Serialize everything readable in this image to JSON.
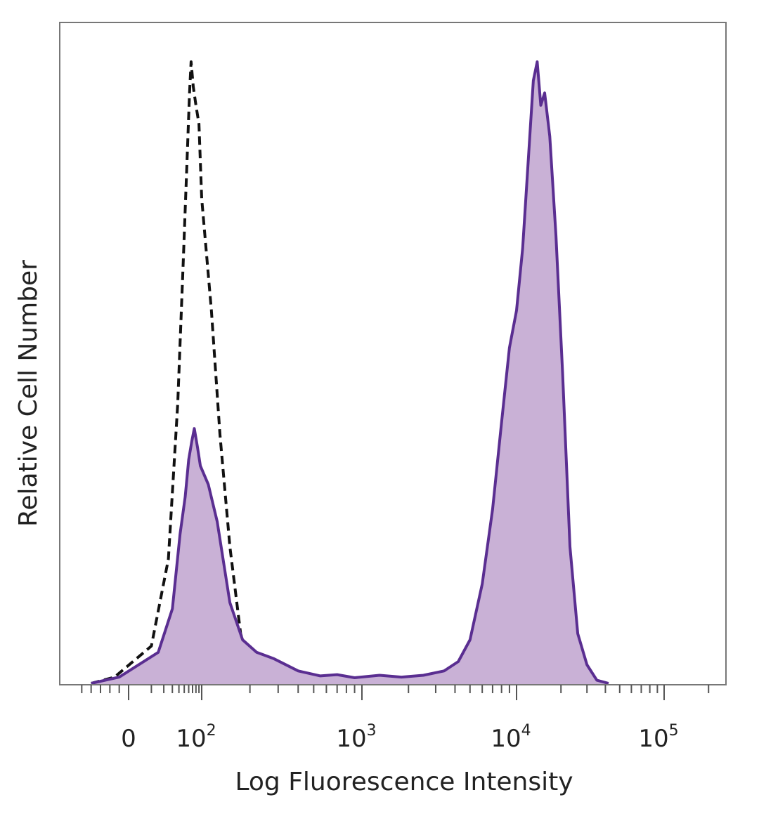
{
  "chart_data": {
    "type": "area",
    "xlabel": "Log Fluorescence Intensity",
    "ylabel": "Relative Cell Number",
    "x_scale": "biexponential",
    "xlim": [
      -60,
      250000
    ],
    "ylim": [
      0,
      1.0
    ],
    "x_ticks": [
      {
        "value": 0,
        "base": "0",
        "exp": ""
      },
      {
        "value": 100,
        "base": "10",
        "exp": "2"
      },
      {
        "value": 1000,
        "base": "10",
        "exp": "3"
      },
      {
        "value": 10000,
        "base": "10",
        "exp": "4"
      },
      {
        "value": 100000,
        "base": "10",
        "exp": "5"
      }
    ],
    "series": [
      {
        "style": "dashed",
        "color": "#111111",
        "fill": "none",
        "points": [
          [
            -40,
            0
          ],
          [
            -15,
            0.01
          ],
          [
            10,
            0.06
          ],
          [
            25,
            0.2
          ],
          [
            38,
            0.45
          ],
          [
            48,
            0.68
          ],
          [
            56,
            0.84
          ],
          [
            62,
            0.95
          ],
          [
            66,
            1.0
          ],
          [
            72,
            0.96
          ],
          [
            80,
            0.93
          ],
          [
            90,
            0.9
          ],
          [
            100,
            0.78
          ],
          [
            115,
            0.6
          ],
          [
            130,
            0.4
          ],
          [
            150,
            0.22
          ],
          [
            175,
            0.08
          ],
          [
            200,
            0.03
          ],
          [
            250,
            0.008
          ],
          [
            330,
            0.002
          ],
          [
            450,
            0
          ]
        ]
      },
      {
        "style": "solid",
        "color": "#5a2e91",
        "fill": "#c9b1d6",
        "points": [
          [
            -40,
            0
          ],
          [
            -10,
            0.01
          ],
          [
            15,
            0.05
          ],
          [
            30,
            0.12
          ],
          [
            42,
            0.24
          ],
          [
            52,
            0.3
          ],
          [
            60,
            0.36
          ],
          [
            68,
            0.39
          ],
          [
            75,
            0.41
          ],
          [
            85,
            0.38
          ],
          [
            95,
            0.35
          ],
          [
            110,
            0.32
          ],
          [
            125,
            0.26
          ],
          [
            150,
            0.13
          ],
          [
            180,
            0.07
          ],
          [
            220,
            0.05
          ],
          [
            280,
            0.04
          ],
          [
            400,
            0.02
          ],
          [
            550,
            0.012
          ],
          [
            700,
            0.014
          ],
          [
            900,
            0.009
          ],
          [
            1300,
            0.013
          ],
          [
            1800,
            0.01
          ],
          [
            2500,
            0.013
          ],
          [
            3400,
            0.02
          ],
          [
            4200,
            0.035
          ],
          [
            5000,
            0.07
          ],
          [
            6000,
            0.16
          ],
          [
            7000,
            0.28
          ],
          [
            8000,
            0.42
          ],
          [
            9000,
            0.54
          ],
          [
            10000,
            0.6
          ],
          [
            11000,
            0.7
          ],
          [
            12000,
            0.84
          ],
          [
            13000,
            0.97
          ],
          [
            13800,
            1.0
          ],
          [
            14600,
            0.93
          ],
          [
            15500,
            0.95
          ],
          [
            16800,
            0.88
          ],
          [
            18500,
            0.72
          ],
          [
            20500,
            0.5
          ],
          [
            23000,
            0.22
          ],
          [
            26000,
            0.08
          ],
          [
            30000,
            0.03
          ],
          [
            35000,
            0.005
          ],
          [
            42000,
            0
          ]
        ]
      }
    ]
  }
}
